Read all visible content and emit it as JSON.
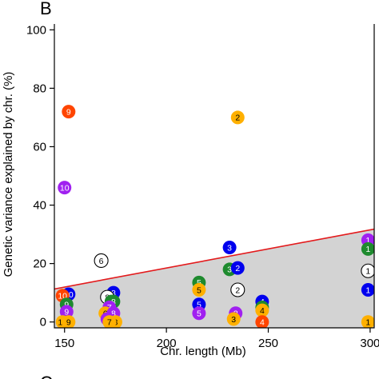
{
  "chart_data": {
    "type": "scatter",
    "panel_label": "B",
    "next_panel_label": "C",
    "xlabel": "Chr. length (Mb)",
    "ylabel": "Genetic variance explained by chr. (%)",
    "xlim": [
      145,
      302
    ],
    "ylim": [
      -2,
      102
    ],
    "x_ticks": [
      150,
      200,
      250,
      300
    ],
    "y_ticks": [
      0,
      20,
      40,
      60,
      80,
      100
    ],
    "grid": false,
    "regression_line": {
      "color": "#e31a1c",
      "points": [
        [
          145,
          11.3
        ],
        [
          302,
          31.8
        ]
      ]
    },
    "shaded_region": {
      "color": "#d3d3d3",
      "below": "regression_line"
    },
    "colors": {
      "blue": "#0000ee",
      "green": "#1e8a2e",
      "orange": "#ff4500",
      "purple": "#a020f0",
      "gold": "#ffb000",
      "white": "#ffffff",
      "red_line": "#e31a1c",
      "shade": "#d3d3d3"
    },
    "points": [
      {
        "x": 152,
        "y": 72,
        "label": "9",
        "color": "orange"
      },
      {
        "x": 150,
        "y": 46,
        "label": "10",
        "color": "purple"
      },
      {
        "x": 235,
        "y": 70,
        "label": "2",
        "color": "gold"
      },
      {
        "x": 168,
        "y": 21,
        "label": "6",
        "color": "white"
      },
      {
        "x": 299,
        "y": 28,
        "label": "1",
        "color": "purple"
      },
      {
        "x": 299,
        "y": 25,
        "label": "1",
        "color": "green"
      },
      {
        "x": 299,
        "y": 17.5,
        "label": "1",
        "color": "white"
      },
      {
        "x": 299,
        "y": 11,
        "label": "1",
        "color": "blue"
      },
      {
        "x": 299,
        "y": 0,
        "label": "1",
        "color": "gold"
      },
      {
        "x": 231,
        "y": 25.5,
        "label": "3",
        "color": "blue"
      },
      {
        "x": 231,
        "y": 18,
        "label": "3",
        "color": "green"
      },
      {
        "x": 235,
        "y": 18.5,
        "label": "2",
        "color": "blue"
      },
      {
        "x": 235,
        "y": 11,
        "label": "2",
        "color": "white"
      },
      {
        "x": 216,
        "y": 13.5,
        "label": "5",
        "color": "green"
      },
      {
        "x": 216,
        "y": 11,
        "label": "5",
        "color": "gold"
      },
      {
        "x": 216,
        "y": 6,
        "label": "5",
        "color": "blue"
      },
      {
        "x": 216,
        "y": 3,
        "label": "5",
        "color": "purple"
      },
      {
        "x": 234,
        "y": 3,
        "label": "2",
        "color": "purple"
      },
      {
        "x": 233,
        "y": 1,
        "label": "3",
        "color": "gold"
      },
      {
        "x": 247,
        "y": 7,
        "label": "4",
        "color": "blue"
      },
      {
        "x": 247,
        "y": 5,
        "label": "4",
        "color": "green"
      },
      {
        "x": 247,
        "y": 4,
        "label": "4",
        "color": "gold"
      },
      {
        "x": 247,
        "y": 0,
        "label": "4",
        "color": "orange"
      },
      {
        "x": 152,
        "y": 9.5,
        "label": "10",
        "color": "blue"
      },
      {
        "x": 149,
        "y": 9,
        "label": "10",
        "color": "orange"
      },
      {
        "x": 151,
        "y": 6,
        "label": "9",
        "color": "green"
      },
      {
        "x": 151,
        "y": 3.5,
        "label": "9",
        "color": "purple"
      },
      {
        "x": 149,
        "y": 0,
        "label": "10",
        "color": "gold"
      },
      {
        "x": 152,
        "y": 0,
        "label": "9",
        "color": "gold"
      },
      {
        "x": 174,
        "y": 10,
        "label": "8",
        "color": "blue"
      },
      {
        "x": 171,
        "y": 8.5,
        "label": "8",
        "color": "white"
      },
      {
        "x": 173,
        "y": 7,
        "label": "7",
        "color": "green"
      },
      {
        "x": 174,
        "y": 7,
        "label": "8",
        "color": "green"
      },
      {
        "x": 172,
        "y": 5,
        "label": "7",
        "color": "purple"
      },
      {
        "x": 170,
        "y": 3,
        "label": "6",
        "color": "gold"
      },
      {
        "x": 174,
        "y": 3,
        "label": "8",
        "color": "purple"
      },
      {
        "x": 171,
        "y": 1,
        "label": "7",
        "color": "purple"
      },
      {
        "x": 175,
        "y": 0,
        "label": "8",
        "color": "gold"
      },
      {
        "x": 172,
        "y": 0,
        "label": "7",
        "color": "gold"
      }
    ]
  }
}
